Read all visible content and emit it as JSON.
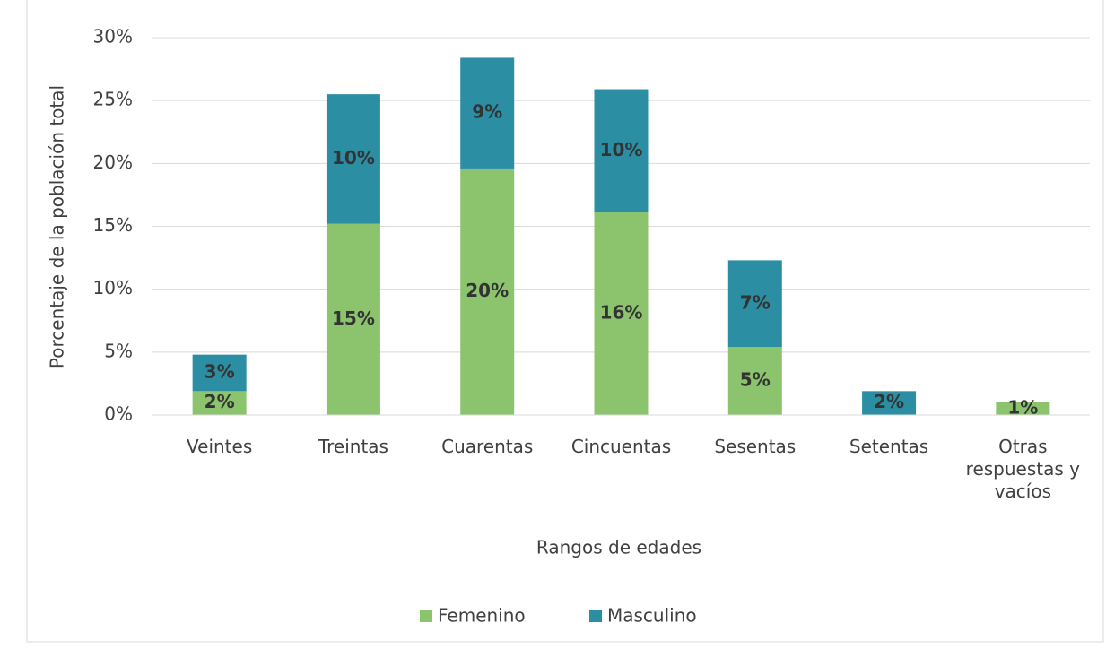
{
  "chart_data": {
    "type": "stacked_bar",
    "y_label": "Porcentaje de la población total",
    "x_label": "Rangos de edades",
    "categories": [
      "Veintes",
      "Treintas",
      "Cuarentas",
      "Cincuentas",
      "Sesentas",
      "Setentas",
      "Otras respuestas y vacíos"
    ],
    "series": [
      {
        "name": "Femenino",
        "color": "#8cc46e",
        "values": [
          1.9,
          15.2,
          19.6,
          16.1,
          5.4,
          0,
          1.0
        ],
        "value_labels": [
          "2%",
          "15%",
          "20%",
          "16%",
          "5%",
          null,
          "1%"
        ]
      },
      {
        "name": "Masculino",
        "color": "#2b8ea3",
        "values": [
          2.9,
          10.3,
          8.8,
          9.8,
          6.9,
          1.9,
          0
        ],
        "value_labels": [
          "3%",
          "10%",
          "9%",
          "10%",
          "7%",
          "2%",
          null
        ]
      }
    ],
    "ylim": [
      0,
      30
    ],
    "yticks": [
      {
        "value": 0,
        "label": "0%"
      },
      {
        "value": 5,
        "label": "5%"
      },
      {
        "value": 10,
        "label": "10%"
      },
      {
        "value": 15,
        "label": "15%"
      },
      {
        "value": 20,
        "label": "20%"
      },
      {
        "value": 25,
        "label": "25%"
      },
      {
        "value": 30,
        "label": "30%"
      }
    ],
    "grid": true,
    "legend": "bottom"
  }
}
